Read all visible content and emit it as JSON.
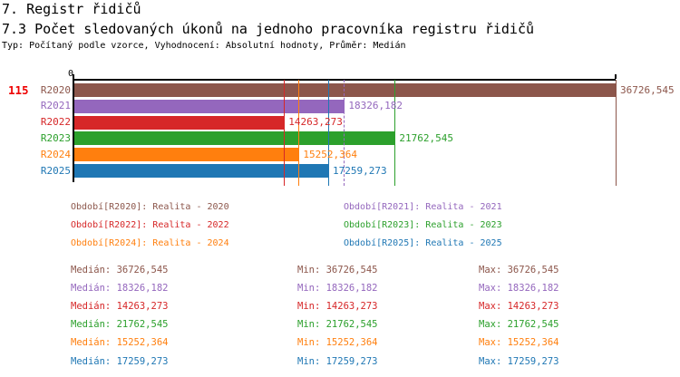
{
  "header": {
    "title": "7. Registr řidičů",
    "subtitle": "7.3 Počet sledovaných úkonů na jednoho pracovníka registru řidičů",
    "meta": "Typ: Počítaný podle vzorce, Vyhodnocení: Absolutní hodnoty, Průměr: Medián"
  },
  "indicator": {
    "row_count": "115"
  },
  "chart_data": {
    "type": "bar",
    "orientation": "horizontal",
    "title": "",
    "x_axis": {
      "min_label": "0",
      "min": 0,
      "max": 36726.545,
      "gridlines": "per-series median lines"
    },
    "categories": [
      "R2020",
      "R2021",
      "R2022",
      "R2023",
      "R2024",
      "R2025"
    ],
    "values": [
      36726.545,
      18326.182,
      14263.273,
      21762.545,
      15252.364,
      17259.273
    ],
    "value_labels": [
      "36726,545",
      "18326,182",
      "14263,273",
      "21762,545",
      "15252,364",
      "17259,273"
    ],
    "colors": [
      "#8C564B",
      "#9467BD",
      "#D62728",
      "#2CA02C",
      "#FF7F0E",
      "#1F77B4"
    ],
    "median_line_styles": [
      "solid",
      "dashed",
      "solid",
      "solid",
      "solid",
      "solid"
    ],
    "legend_position": "below"
  },
  "legend": {
    "items": [
      {
        "label": "Období[R2020]: Realita - 2020",
        "color": "#8C564B"
      },
      {
        "label": "Období[R2021]: Realita - 2021",
        "color": "#9467BD"
      },
      {
        "label": "Období[R2022]: Realita - 2022",
        "color": "#D62728"
      },
      {
        "label": "Období[R2023]: Realita - 2023",
        "color": "#2CA02C"
      },
      {
        "label": "Období[R2024]: Realita - 2024",
        "color": "#FF7F0E"
      },
      {
        "label": "Období[R2025]: Realita - 2025",
        "color": "#1F77B4"
      }
    ]
  },
  "stats": {
    "labels": {
      "median": "Medián",
      "min": "Min",
      "max": "Max"
    },
    "rows": [
      {
        "color": "#8C564B",
        "median": "36726,545",
        "min": "36726,545",
        "max": "36726,545"
      },
      {
        "color": "#9467BD",
        "median": "18326,182",
        "min": "18326,182",
        "max": "18326,182"
      },
      {
        "color": "#D62728",
        "median": "14263,273",
        "min": "14263,273",
        "max": "14263,273"
      },
      {
        "color": "#2CA02C",
        "median": "21762,545",
        "min": "21762,545",
        "max": "21762,545"
      },
      {
        "color": "#FF7F0E",
        "median": "15252,364",
        "min": "15252,364",
        "max": "15252,364"
      },
      {
        "color": "#1F77B4",
        "median": "17259,273",
        "min": "17259,273",
        "max": "17259,273"
      }
    ]
  },
  "accent_colors": {
    "indicator_red": "#EE0000",
    "axis_black": "#000000"
  }
}
